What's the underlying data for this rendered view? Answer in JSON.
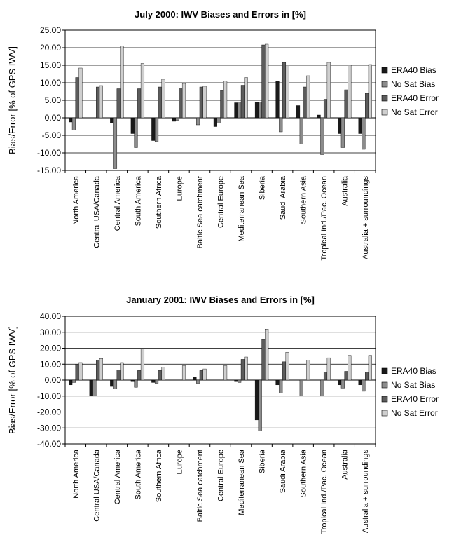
{
  "chart_data": [
    {
      "type": "bar",
      "title": "July 2000: IWV Biases and Errors in [%]",
      "ylabel": "Bias/Error [% of GPS IWV]",
      "xlabel": "",
      "ylim": [
        -15,
        25
      ],
      "yticks": [
        25,
        20,
        15,
        10,
        5,
        0,
        -5,
        -10,
        -15
      ],
      "ytick_labels": [
        "25.00",
        "20.00",
        "15.00",
        "10.00",
        "5.00",
        "0.00",
        "-5.00",
        "-10.00",
        "-15.00"
      ],
      "grid": true,
      "legend_position": "right",
      "categories": [
        "North America",
        "Central USA/Canada",
        "Central America",
        "South America",
        "Southern Africa",
        "Europe",
        "Baltic Sea catchment",
        "Central Europe",
        "Mediterranean Sea",
        "Siberia",
        "Saudi Arabia",
        "Southern Asia",
        "Tropical Ind./Pac. Ocean",
        "Australia",
        "Australia + surroundings"
      ],
      "series": [
        {
          "name": "ERA40 Bias",
          "color": "#1a1a1a",
          "values": [
            -1.2,
            0.0,
            -1.5,
            -4.5,
            -6.5,
            -1.0,
            0.0,
            -2.5,
            4.3,
            4.5,
            10.5,
            3.5,
            0.8,
            -4.5,
            -4.5
          ]
        },
        {
          "name": "No Sat Bias",
          "color": "#8c8c8c",
          "values": [
            -3.5,
            0.0,
            -14.5,
            -8.5,
            -6.8,
            -0.8,
            -2.0,
            -1.5,
            4.5,
            4.5,
            -4.0,
            -7.5,
            -10.5,
            -8.5,
            -9.0
          ]
        },
        {
          "name": "ERA40 Error",
          "color": "#5c5c5c",
          "values": [
            11.5,
            8.8,
            8.3,
            8.3,
            8.8,
            8.5,
            8.8,
            7.8,
            9.3,
            20.8,
            15.8,
            8.8,
            5.3,
            8.0,
            7.0
          ]
        },
        {
          "name": "No Sat Error",
          "color": "#cfcfcf",
          "values": [
            14.2,
            9.2,
            20.5,
            15.5,
            11.0,
            9.8,
            9.0,
            10.5,
            11.5,
            21.0,
            15.0,
            12.0,
            15.8,
            15.0,
            15.2
          ]
        }
      ]
    },
    {
      "type": "bar",
      "title": "January 2001: IWV Biases and Errors in [%]",
      "ylabel": "Bias/Error [% of GPS IWV]",
      "xlabel": "",
      "ylim": [
        -40,
        40
      ],
      "yticks": [
        40,
        30,
        20,
        10,
        0,
        -10,
        -20,
        -30,
        -40
      ],
      "ytick_labels": [
        "40.00",
        "30.00",
        "20.00",
        "10.00",
        "0.00",
        "-10.00",
        "-20.00",
        "-30.00",
        "-40.00"
      ],
      "grid": true,
      "legend_position": "right",
      "categories": [
        "North America",
        "Central USA/Canada",
        "Central America",
        "South America",
        "Southern Africa",
        "Europe",
        "Baltic Sea catchment",
        "Central Europe",
        "Mediterranean Sea",
        "Siberia",
        "Saudi Arabia",
        "Southern Asia",
        "Tropical Ind./Pac. Ocean",
        "Australia",
        "Australia + surroundings"
      ],
      "series": [
        {
          "name": "ERA40 Bias",
          "color": "#1a1a1a",
          "values": [
            -3.0,
            -10.0,
            -4.0,
            -1.0,
            -1.5,
            0.0,
            2.0,
            0.0,
            -1.0,
            -25.0,
            -3.0,
            0.0,
            0.0,
            -3.0,
            -3.0
          ]
        },
        {
          "name": "No Sat Bias",
          "color": "#8c8c8c",
          "values": [
            -1.5,
            -10.0,
            -5.5,
            -4.5,
            -2.0,
            0.0,
            -2.0,
            0.0,
            -1.5,
            -32.0,
            -8.0,
            -10.0,
            -10.0,
            -5.0,
            -7.0
          ]
        },
        {
          "name": "ERA40 Error",
          "color": "#5c5c5c",
          "values": [
            10.0,
            12.5,
            6.5,
            6.0,
            6.0,
            0.0,
            6.0,
            0.0,
            13.0,
            25.5,
            11.5,
            0.0,
            5.0,
            5.5,
            5.0
          ]
        },
        {
          "name": "No Sat Error",
          "color": "#cfcfcf",
          "values": [
            11.0,
            13.5,
            11.0,
            19.5,
            8.0,
            9.0,
            7.0,
            9.0,
            14.5,
            32.0,
            17.5,
            12.5,
            14.0,
            15.5,
            15.5
          ]
        }
      ]
    }
  ]
}
